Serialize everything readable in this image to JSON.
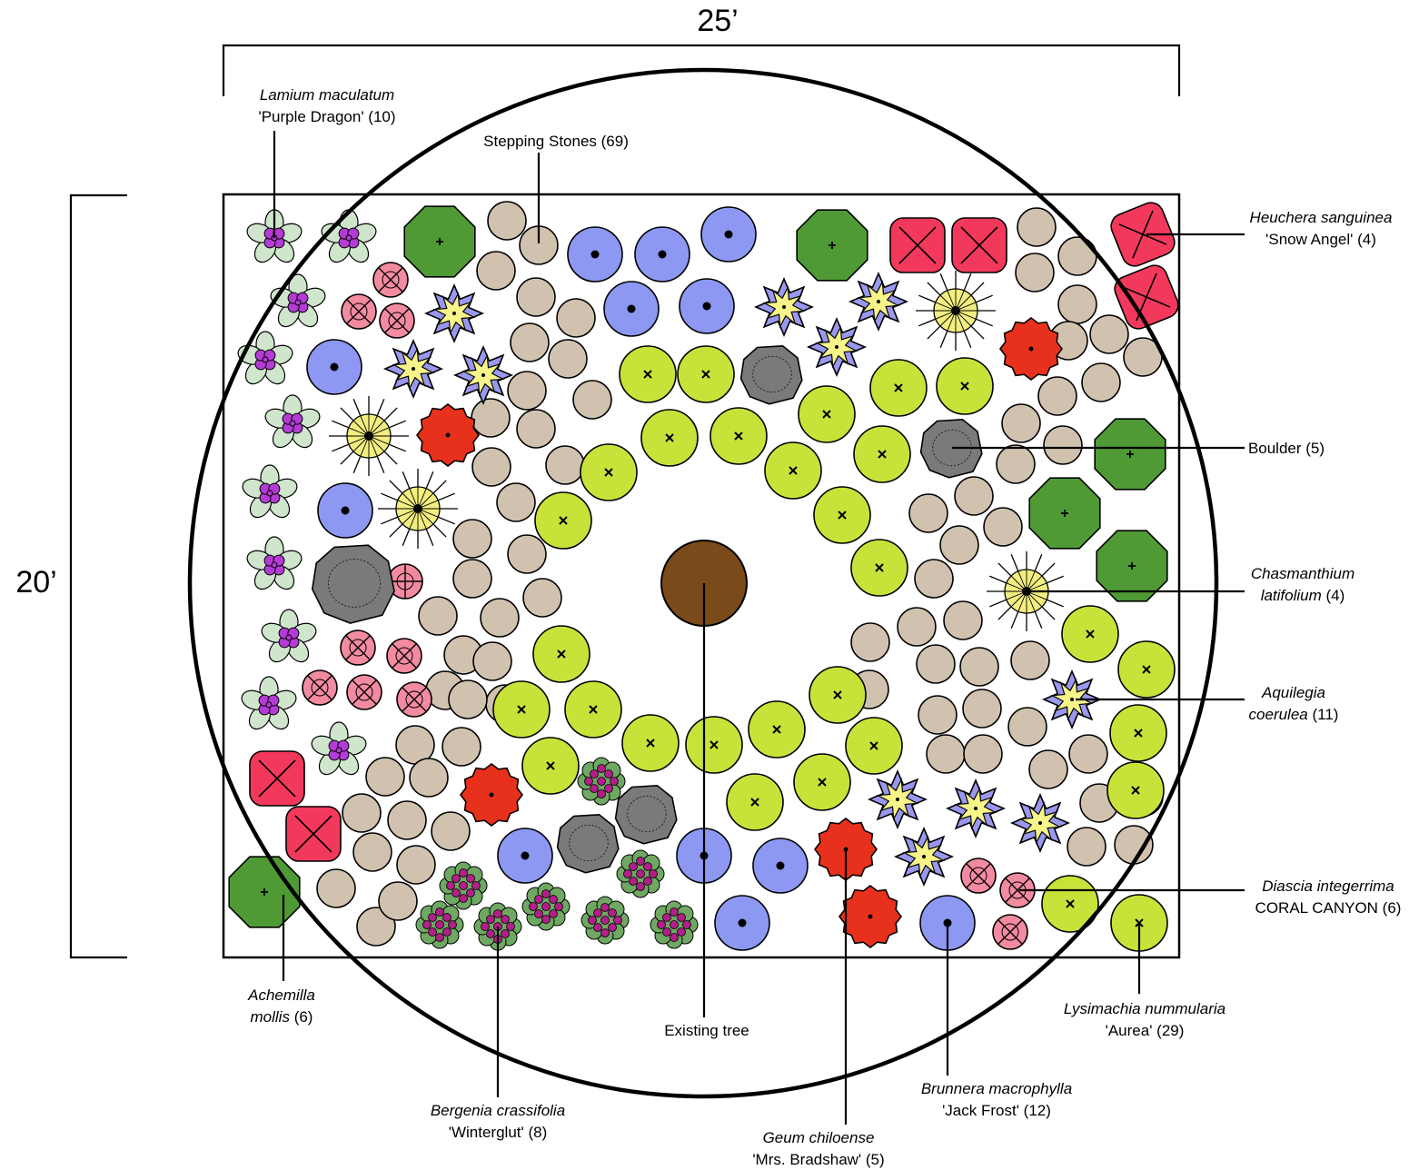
{
  "dimensions": {
    "width": "25’",
    "height": "20’"
  },
  "labels": {
    "lamium": {
      "name": "Lamium maculatum",
      "detail": "'Purple Dragon' (10)"
    },
    "stones": {
      "name": "",
      "detail": "Stepping Stones (69)"
    },
    "heuchera": {
      "name": "Heuchera sanguinea",
      "detail": "'Snow Angel' (4)"
    },
    "boulder": {
      "name": "",
      "detail": "Boulder (5)"
    },
    "chasmanthium": {
      "name": "Chasmanthium",
      "name2": "latifolium",
      "count": " (4)"
    },
    "aquilegia": {
      "name": "Aquilegia",
      "name2": "coerulea",
      "count": " (11)"
    },
    "diascia": {
      "name": "Diascia integerrima",
      "detail": "CORAL CANYON (6)"
    },
    "lysimachia": {
      "name": "Lysimachia nummularia",
      "detail": "'Aurea' (29)"
    },
    "brunnera": {
      "name": "Brunnera macrophylla",
      "detail": "'Jack Frost' (12)"
    },
    "geum": {
      "name": "Geum chiloense",
      "detail": "'Mrs. Bradshaw' (5)"
    },
    "tree": {
      "name": "",
      "detail": "Existing tree"
    },
    "bergenia": {
      "name": "Bergenia crassifolia",
      "detail": "'Winterglut' (8)"
    },
    "achemilla": {
      "name": "Achemilla",
      "name2": "mollis",
      "count": " (6)"
    }
  },
  "colors": {
    "lamium_leaf": "#cfe6cc",
    "lamium_flower": "#b43bd6",
    "stone": "#d1c2b0",
    "brunnera": "#8c98f2",
    "achemilla": "#4f9a35",
    "heuchera": "#f2395c",
    "diascia": "#f28aa0",
    "aquilegia_petal": "#9a98ee",
    "aquilegia_center": "#f7f58a",
    "chasmanthium": "#f2ee80",
    "geum": "#e8311c",
    "lysimachia": "#c9e23a",
    "boulder": "#7a7a7a",
    "bergenia_leaf": "#6ea862",
    "bergenia_flower": "#b41e8a",
    "tree": "#7a4a1a"
  }
}
